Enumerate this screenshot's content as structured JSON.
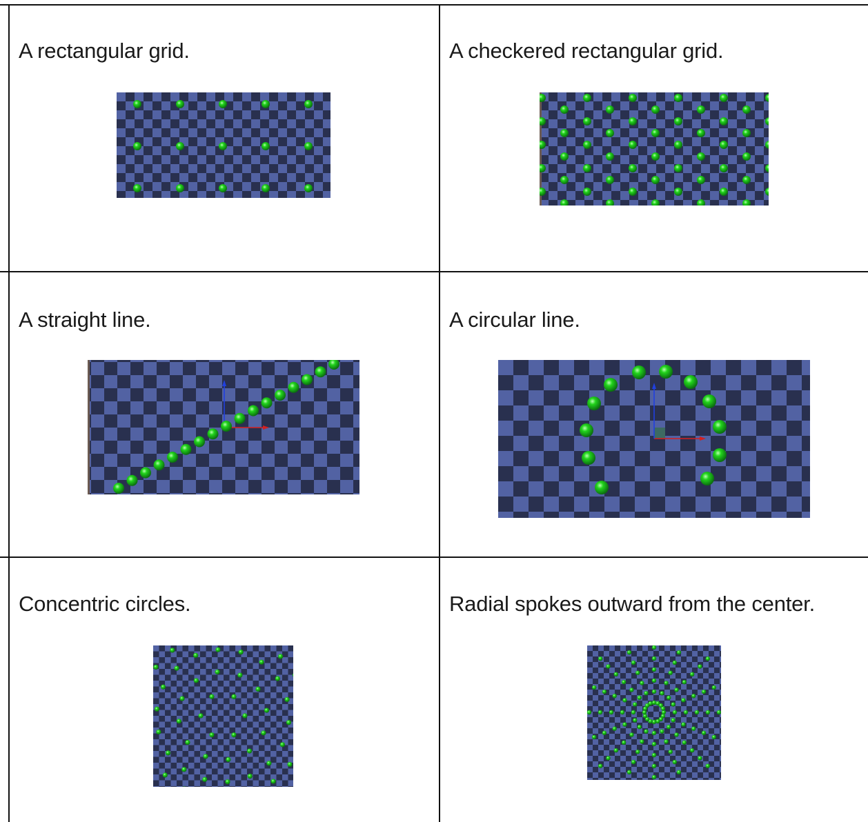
{
  "cells": [
    {
      "id": "rectangular-grid",
      "caption": "A rectangular grid."
    },
    {
      "id": "checkered-grid",
      "caption": "A checkered rectangular grid."
    },
    {
      "id": "straight-line",
      "caption": "A straight line."
    },
    {
      "id": "circular-line",
      "caption": "A circular line."
    },
    {
      "id": "concentric-circles",
      "caption": "Concentric circles."
    },
    {
      "id": "radial-spokes",
      "caption": "Radial spokes outward from the center."
    }
  ],
  "colors": {
    "checker_light": "#5262a3",
    "checker_dark": "#29304f",
    "sphere": "#22d41c",
    "axis_x": "#d42020",
    "axis_y": "#2040e0",
    "border": "#111111"
  }
}
